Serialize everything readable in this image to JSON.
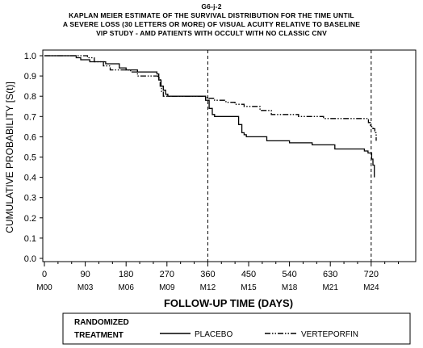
{
  "chart_data": {
    "type": "line",
    "title_lines": [
      "G6-j-2",
      "KAPLAN MEIER ESTIMATE OF THE SURVIVAL DISTRIBUTION FOR THE TIME UNTIL",
      "A SEVERE LOSS (30 LETTERS OR MORE) OF VISUAL ACUITY RELATIVE TO BASELINE",
      "VIP STUDY  -  AMD PATIENTS WITH OCCULT WITH NO CLASSIC CNV"
    ],
    "xlabel": "FOLLOW-UP TIME (DAYS)",
    "ylabel": "CUMULATIVE PROBABILITY  [S(t)]",
    "xlim": [
      0,
      780
    ],
    "ylim": [
      0,
      1
    ],
    "x_ticks": [
      0,
      90,
      180,
      270,
      360,
      450,
      540,
      630,
      720
    ],
    "x_tick_labels": [
      "0",
      "90",
      "180",
      "270",
      "360",
      "450",
      "540",
      "630",
      "720"
    ],
    "month_labels": [
      "M00",
      "M03",
      "M06",
      "M09",
      "M12",
      "M15",
      "M18",
      "M21",
      "M24"
    ],
    "y_ticks": [
      0,
      0.1,
      0.2,
      0.3,
      0.4,
      0.5,
      0.6,
      0.7,
      0.8,
      0.9,
      1.0
    ],
    "y_tick_labels": [
      "0.0",
      "0.1",
      "0.2",
      "0.3",
      "0.4",
      "0.5",
      "0.6",
      "0.7",
      "0.8",
      "0.9",
      "1.0"
    ],
    "reference_lines_x": [
      360,
      720
    ],
    "legend": {
      "title_line1": "RANDOMIZED",
      "title_line2": "TREATMENT",
      "placement": "bottom"
    },
    "series": [
      {
        "name": "PLACEBO",
        "style": "solid",
        "points": [
          [
            0,
            1.0
          ],
          [
            70,
            0.99
          ],
          [
            80,
            0.98
          ],
          [
            100,
            0.97
          ],
          [
            135,
            0.96
          ],
          [
            165,
            0.94
          ],
          [
            180,
            0.93
          ],
          [
            205,
            0.92
          ],
          [
            240,
            0.92
          ],
          [
            248,
            0.91
          ],
          [
            252,
            0.88
          ],
          [
            257,
            0.85
          ],
          [
            262,
            0.83
          ],
          [
            267,
            0.81
          ],
          [
            272,
            0.8
          ],
          [
            350,
            0.8
          ],
          [
            355,
            0.78
          ],
          [
            363,
            0.74
          ],
          [
            370,
            0.71
          ],
          [
            375,
            0.7
          ],
          [
            420,
            0.7
          ],
          [
            428,
            0.66
          ],
          [
            435,
            0.62
          ],
          [
            440,
            0.61
          ],
          [
            445,
            0.6
          ],
          [
            480,
            0.6
          ],
          [
            490,
            0.58
          ],
          [
            530,
            0.58
          ],
          [
            540,
            0.57
          ],
          [
            580,
            0.57
          ],
          [
            590,
            0.56
          ],
          [
            630,
            0.56
          ],
          [
            640,
            0.54
          ],
          [
            705,
            0.53
          ],
          [
            713,
            0.52
          ],
          [
            718,
            0.52
          ],
          [
            721,
            0.49
          ],
          [
            724,
            0.46
          ],
          [
            727,
            0.4
          ]
        ]
      },
      {
        "name": "VERTEPORFIN",
        "style": "dash-dot",
        "points": [
          [
            0,
            1.0
          ],
          [
            95,
            0.99
          ],
          [
            110,
            0.97
          ],
          [
            130,
            0.95
          ],
          [
            145,
            0.93
          ],
          [
            190,
            0.92
          ],
          [
            205,
            0.9
          ],
          [
            250,
            0.89
          ],
          [
            255,
            0.85
          ],
          [
            258,
            0.82
          ],
          [
            262,
            0.8
          ],
          [
            350,
            0.8
          ],
          [
            358,
            0.79
          ],
          [
            375,
            0.78
          ],
          [
            400,
            0.77
          ],
          [
            420,
            0.76
          ],
          [
            440,
            0.75
          ],
          [
            475,
            0.73
          ],
          [
            500,
            0.71
          ],
          [
            540,
            0.71
          ],
          [
            560,
            0.7
          ],
          [
            600,
            0.7
          ],
          [
            615,
            0.69
          ],
          [
            710,
            0.69
          ],
          [
            714,
            0.67
          ],
          [
            718,
            0.65
          ],
          [
            724,
            0.64
          ],
          [
            728,
            0.62
          ],
          [
            731,
            0.58
          ]
        ]
      }
    ]
  }
}
